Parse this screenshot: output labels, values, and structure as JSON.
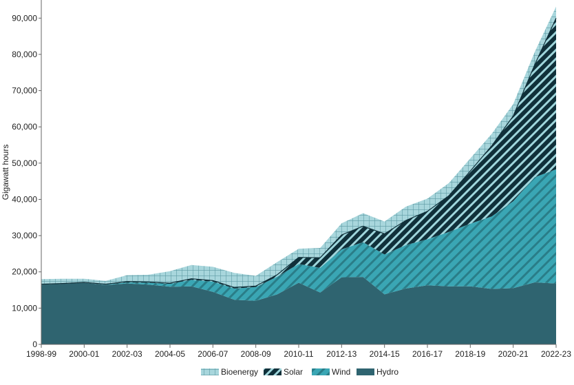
{
  "chart_data": {
    "type": "area",
    "stacked": true,
    "ylabel": "Gigawatt hours",
    "ylim": [
      0,
      95000
    ],
    "y_ticks": [
      0,
      10000,
      20000,
      30000,
      40000,
      50000,
      60000,
      70000,
      80000,
      90000
    ],
    "y_tick_labels": [
      "0",
      "10,000",
      "20,000",
      "30,000",
      "40,000",
      "50,000",
      "60,000",
      "70,000",
      "80,000",
      "90,000"
    ],
    "categories": [
      "1998-99",
      "1999-00",
      "2000-01",
      "2001-02",
      "2002-03",
      "2003-04",
      "2004-05",
      "2005-06",
      "2006-07",
      "2007-08",
      "2008-09",
      "2009-10",
      "2010-11",
      "2011-12",
      "2012-13",
      "2013-14",
      "2014-15",
      "2015-16",
      "2016-17",
      "2017-18",
      "2018-19",
      "2019-20",
      "2020-21",
      "2021-22",
      "2022-23"
    ],
    "x_tick_labels": [
      "1998-99",
      "2000-01",
      "2002-03",
      "2004-05",
      "2006-07",
      "2008-09",
      "2010-11",
      "2012-13",
      "2014-15",
      "2016-17",
      "2018-19",
      "2020-21",
      "2022-23"
    ],
    "legend_position": "bottom",
    "series": [
      {
        "name": "Hydro",
        "color": "#2f6470",
        "pattern": "solid",
        "values": [
          16500,
          16700,
          17000,
          16400,
          16800,
          16500,
          15900,
          16000,
          14500,
          12300,
          12000,
          13800,
          17000,
          14300,
          18500,
          18600,
          13800,
          15400,
          16300,
          16000,
          16000,
          15300,
          15500,
          17100,
          16800
        ]
      },
      {
        "name": "Wind",
        "color": "#3aa6b4",
        "pattern": "diagonal",
        "values": [
          0,
          0,
          0,
          100,
          300,
          500,
          800,
          1800,
          2800,
          3100,
          3800,
          4900,
          5200,
          6800,
          7700,
          9600,
          11000,
          12000,
          12700,
          15000,
          17300,
          20000,
          24000,
          29000,
          31500
        ]
      },
      {
        "name": "Solar",
        "color": "#10303a",
        "pattern": "diagonal-wide",
        "values": [
          100,
          100,
          100,
          100,
          200,
          200,
          200,
          300,
          300,
          300,
          300,
          500,
          1800,
          2800,
          4000,
          4400,
          5700,
          6800,
          7700,
          10000,
          14500,
          19500,
          23500,
          31000,
          41700
        ]
      },
      {
        "name": "Bioenergy",
        "color": "#8fc9d1",
        "pattern": "grid",
        "values": [
          1400,
          1300,
          1000,
          900,
          1800,
          2000,
          3300,
          3800,
          3800,
          4000,
          2800,
          3500,
          2400,
          2700,
          3200,
          3600,
          3400,
          3800,
          3500,
          3500,
          3500,
          3300,
          3300,
          3500,
          3200
        ]
      }
    ]
  }
}
